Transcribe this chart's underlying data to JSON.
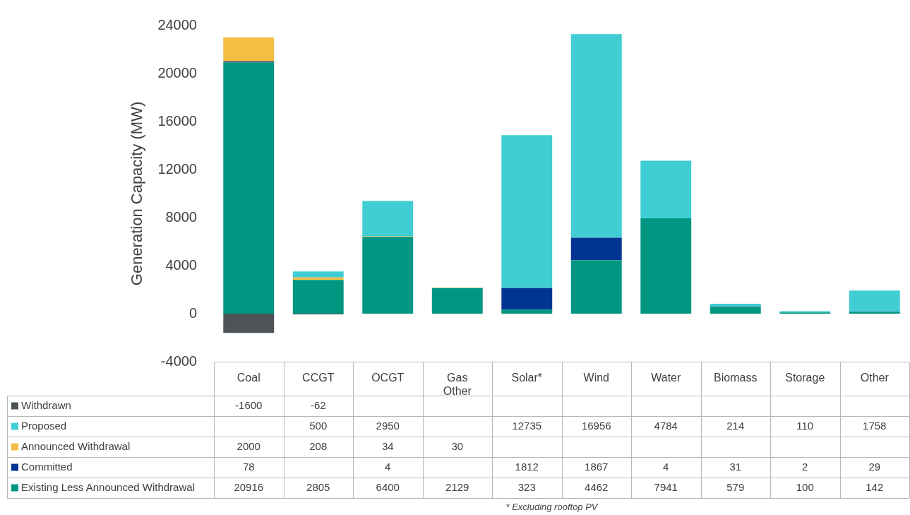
{
  "chart_data": {
    "type": "bar",
    "stacked": true,
    "ylabel": "Generation Capacity (MW)",
    "categories": [
      "Coal",
      "CCGT",
      "OCGT",
      "Gas Other",
      "Solar*",
      "Wind",
      "Water",
      "Biomass",
      "Storage",
      "Other"
    ],
    "series": [
      {
        "name": "Existing Less Announced Withdrawal",
        "color": "#009681",
        "values": [
          20916,
          2805,
          6400,
          2129,
          323,
          4462,
          7941,
          579,
          100,
          142
        ]
      },
      {
        "name": "Committed",
        "color": "#003594",
        "values": [
          78,
          null,
          4,
          null,
          1812,
          1867,
          4,
          31,
          2,
          29
        ]
      },
      {
        "name": "Announced Withdrawal",
        "color": "#f4bd43",
        "values": [
          2000,
          208,
          34,
          30,
          null,
          null,
          null,
          null,
          null,
          null
        ]
      },
      {
        "name": "Proposed",
        "color": "#40ced4",
        "values": [
          null,
          500,
          2950,
          null,
          12735,
          16956,
          4784,
          214,
          110,
          1758
        ]
      },
      {
        "name": "Withdrawn",
        "color": "#4d5357",
        "values": [
          -1600,
          -62,
          null,
          null,
          null,
          null,
          null,
          null,
          null,
          null
        ]
      }
    ],
    "ylim": [
      -4000,
      24000
    ],
    "yticks": [
      -4000,
      0,
      4000,
      8000,
      12000,
      16000,
      20000,
      24000
    ],
    "grid": false,
    "legend": "bottom left",
    "data_labels": true,
    "annotations": [
      "* Excluding rooftop PV"
    ]
  }
}
